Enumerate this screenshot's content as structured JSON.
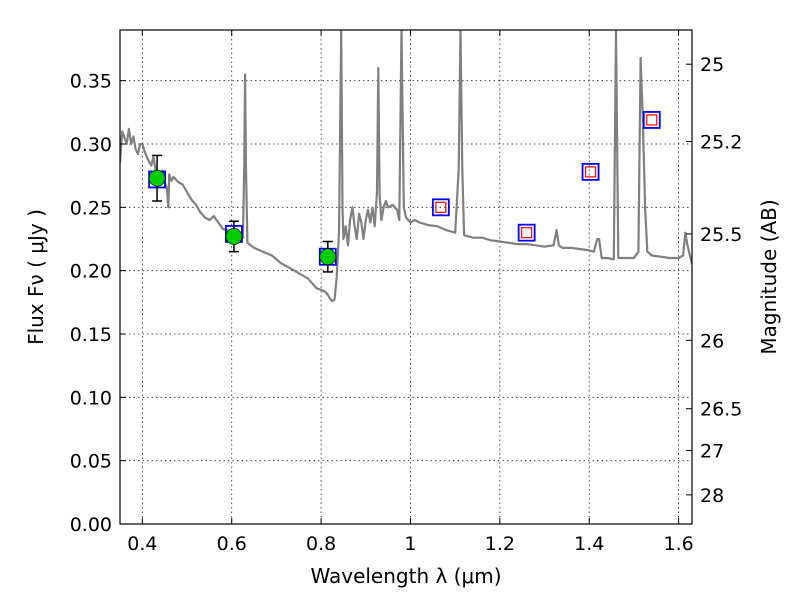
{
  "chart_data": {
    "type": "scatter",
    "xlabel": "Wavelength  λ (μm)",
    "ylabel": "Flux  Fν  ( μJy )",
    "ylabel_right": "Magnitude (AB)",
    "xlim": [
      0.35,
      1.63
    ],
    "ylim": [
      0.0,
      0.39
    ],
    "grid": true,
    "x_ticks": [
      0.4,
      0.6,
      0.8,
      1.0,
      1.2,
      1.4,
      1.6
    ],
    "x_tick_labels": [
      "0.4",
      "0.6",
      "0.8",
      "1",
      "1.2",
      "1.4",
      "1.6"
    ],
    "y_ticks": [
      0.0,
      0.05,
      0.1,
      0.15,
      0.2,
      0.25,
      0.3,
      0.35
    ],
    "y_tick_labels": [
      "0.00",
      "0.05",
      "0.10",
      "0.15",
      "0.20",
      "0.25",
      "0.30",
      "0.35"
    ],
    "right_ticks": [
      {
        "label": "25",
        "flux": 0.363
      },
      {
        "label": "25.2",
        "flux": 0.302
      },
      {
        "label": "25.5",
        "flux": 0.229
      },
      {
        "label": "26",
        "flux": 0.145
      },
      {
        "label": "26.5",
        "flux": 0.091
      },
      {
        "label": "27",
        "flux": 0.058
      },
      {
        "label": "28",
        "flux": 0.023
      }
    ],
    "series": [
      {
        "kind": "model-spectrum",
        "color": "#808080",
        "points": [
          [
            0.35,
            0.285
          ],
          [
            0.355,
            0.31
          ],
          [
            0.36,
            0.305
          ],
          [
            0.365,
            0.3
          ],
          [
            0.37,
            0.312
          ],
          [
            0.375,
            0.3
          ],
          [
            0.38,
            0.306
          ],
          [
            0.385,
            0.296
          ],
          [
            0.39,
            0.292
          ],
          [
            0.395,
            0.3
          ],
          [
            0.4,
            0.3
          ],
          [
            0.405,
            0.294
          ],
          [
            0.41,
            0.29
          ],
          [
            0.415,
            0.286
          ],
          [
            0.42,
            0.283
          ],
          [
            0.425,
            0.29
          ],
          [
            0.43,
            0.278
          ],
          [
            0.435,
            0.276
          ],
          [
            0.44,
            0.272
          ],
          [
            0.445,
            0.279
          ],
          [
            0.45,
            0.27
          ],
          [
            0.455,
            0.265
          ],
          [
            0.458,
            0.25
          ],
          [
            0.46,
            0.276
          ],
          [
            0.465,
            0.271
          ],
          [
            0.47,
            0.274
          ],
          [
            0.48,
            0.27
          ],
          [
            0.49,
            0.268
          ],
          [
            0.5,
            0.262
          ],
          [
            0.51,
            0.256
          ],
          [
            0.52,
            0.252
          ],
          [
            0.53,
            0.246
          ],
          [
            0.54,
            0.242
          ],
          [
            0.55,
            0.24
          ],
          [
            0.56,
            0.243
          ],
          [
            0.57,
            0.238
          ],
          [
            0.58,
            0.233
          ],
          [
            0.59,
            0.232
          ],
          [
            0.6,
            0.23
          ],
          [
            0.61,
            0.228
          ],
          [
            0.62,
            0.226
          ],
          [
            0.625,
            0.226
          ],
          [
            0.628,
            0.28
          ],
          [
            0.63,
            0.355
          ],
          [
            0.632,
            0.28
          ],
          [
            0.635,
            0.222
          ],
          [
            0.65,
            0.218
          ],
          [
            0.67,
            0.215
          ],
          [
            0.69,
            0.212
          ],
          [
            0.71,
            0.206
          ],
          [
            0.73,
            0.202
          ],
          [
            0.75,
            0.198
          ],
          [
            0.77,
            0.194
          ],
          [
            0.78,
            0.19
          ],
          [
            0.79,
            0.186
          ],
          [
            0.8,
            0.185
          ],
          [
            0.81,
            0.183
          ],
          [
            0.815,
            0.181
          ],
          [
            0.82,
            0.178
          ],
          [
            0.825,
            0.176
          ],
          [
            0.83,
            0.177
          ],
          [
            0.835,
            0.195
          ],
          [
            0.84,
            0.23
          ],
          [
            0.845,
            0.39
          ],
          [
            0.848,
            0.25
          ],
          [
            0.85,
            0.225
          ],
          [
            0.855,
            0.235
          ],
          [
            0.86,
            0.22
          ],
          [
            0.865,
            0.24
          ],
          [
            0.87,
            0.25
          ],
          [
            0.875,
            0.235
          ],
          [
            0.88,
            0.225
          ],
          [
            0.885,
            0.245
          ],
          [
            0.89,
            0.238
          ],
          [
            0.895,
            0.225
          ],
          [
            0.9,
            0.24
          ],
          [
            0.905,
            0.248
          ],
          [
            0.91,
            0.238
          ],
          [
            0.915,
            0.25
          ],
          [
            0.92,
            0.235
          ],
          [
            0.925,
            0.262
          ],
          [
            0.928,
            0.36
          ],
          [
            0.931,
            0.26
          ],
          [
            0.935,
            0.24
          ],
          [
            0.94,
            0.25
          ],
          [
            0.945,
            0.255
          ],
          [
            0.95,
            0.25
          ],
          [
            0.96,
            0.252
          ],
          [
            0.97,
            0.248
          ],
          [
            0.975,
            0.24
          ],
          [
            0.98,
            0.39
          ],
          [
            0.985,
            0.25
          ],
          [
            0.99,
            0.242
          ],
          [
            1.0,
            0.238
          ],
          [
            1.01,
            0.24
          ],
          [
            1.02,
            0.238
          ],
          [
            1.04,
            0.236
          ],
          [
            1.06,
            0.235
          ],
          [
            1.08,
            0.232
          ],
          [
            1.1,
            0.23
          ],
          [
            1.108,
            0.28
          ],
          [
            1.112,
            0.39
          ],
          [
            1.116,
            0.28
          ],
          [
            1.12,
            0.228
          ],
          [
            1.14,
            0.226
          ],
          [
            1.16,
            0.226
          ],
          [
            1.18,
            0.224
          ],
          [
            1.2,
            0.223
          ],
          [
            1.22,
            0.222
          ],
          [
            1.24,
            0.221
          ],
          [
            1.26,
            0.221
          ],
          [
            1.28,
            0.22
          ],
          [
            1.3,
            0.219
          ],
          [
            1.32,
            0.22
          ],
          [
            1.327,
            0.232
          ],
          [
            1.332,
            0.22
          ],
          [
            1.34,
            0.218
          ],
          [
            1.36,
            0.218
          ],
          [
            1.38,
            0.217
          ],
          [
            1.4,
            0.216
          ],
          [
            1.41,
            0.215
          ],
          [
            1.418,
            0.225
          ],
          [
            1.422,
            0.225
          ],
          [
            1.428,
            0.21
          ],
          [
            1.44,
            0.21
          ],
          [
            1.455,
            0.209
          ],
          [
            1.46,
            0.39
          ],
          [
            1.465,
            0.21
          ],
          [
            1.48,
            0.21
          ],
          [
            1.5,
            0.21
          ],
          [
            1.51,
            0.215
          ],
          [
            1.515,
            0.368
          ],
          [
            1.52,
            0.32
          ],
          [
            1.525,
            0.25
          ],
          [
            1.53,
            0.215
          ],
          [
            1.54,
            0.212
          ],
          [
            1.56,
            0.211
          ],
          [
            1.58,
            0.21
          ],
          [
            1.6,
            0.21
          ],
          [
            1.61,
            0.212
          ],
          [
            1.615,
            0.23
          ],
          [
            1.62,
            0.22
          ],
          [
            1.63,
            0.205
          ]
        ]
      },
      {
        "kind": "model-photometry",
        "marker": "blue-open-square",
        "color": "#0000ff",
        "points": [
          [
            0.433,
            0.272
          ],
          [
            0.605,
            0.229
          ],
          [
            0.815,
            0.211
          ],
          [
            1.068,
            0.25
          ],
          [
            1.26,
            0.23
          ],
          [
            1.403,
            0.278
          ],
          [
            1.54,
            0.319
          ]
        ]
      },
      {
        "kind": "measured-photometry",
        "marker": "green-circle",
        "color": "#00cc00",
        "points": [
          {
            "x": 0.433,
            "y": 0.273,
            "err": 0.018
          },
          {
            "x": 0.605,
            "y": 0.227,
            "err": 0.012
          },
          {
            "x": 0.815,
            "y": 0.211,
            "err": 0.012
          }
        ]
      },
      {
        "kind": "upper-limits",
        "marker": "red-open-square",
        "color": "#ff0000",
        "points": [
          [
            1.068,
            0.25
          ],
          [
            1.26,
            0.23
          ],
          [
            1.403,
            0.278
          ],
          [
            1.54,
            0.319
          ]
        ]
      }
    ]
  }
}
